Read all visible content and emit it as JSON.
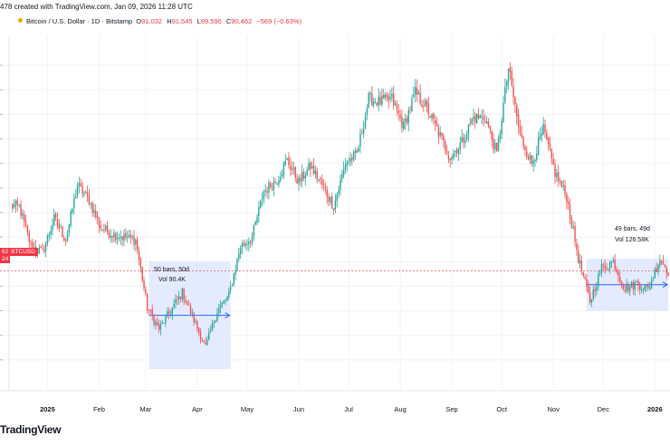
{
  "header": {
    "snapshot_line": "478 created with TradingView.com, Jan 09, 2026 11:28 UTC"
  },
  "legend": {
    "symbol": "Bitcoin / U.S. Dollar · 1D · Bitstamp",
    "open_key": "O",
    "open": "91,032",
    "high_key": "H",
    "high": "91,545",
    "low_key": "L",
    "low": "89,596",
    "close_key": "C",
    "close": "90,462",
    "change": "−569 (−0.63%)"
  },
  "price_label": {
    "left": "62",
    "name": "BTCUSD",
    "second": "24"
  },
  "measure_boxes": [
    {
      "bars_text": "50 bars, 50d",
      "vol_text": "Vol 90.4K"
    },
    {
      "bars_text": "49 bars, 49d",
      "vol_text": "Vol 126.58K"
    }
  ],
  "watermark": "TradingView",
  "colors": {
    "up": "#26a69a",
    "down": "#ef5350",
    "price_line": "#f23645",
    "measure_fill": "#dbe4ff",
    "measure_line": "#2962ff"
  },
  "chart_data": {
    "type": "candlestick",
    "symbol": "BTCUSD",
    "timeframe": "1D",
    "x_tick_labels": [
      "2025",
      "Feb",
      "Mar",
      "Apr",
      "May",
      "Jun",
      "Jul",
      "Aug",
      "Sep",
      "Oct",
      "Nov",
      "Dec",
      "2026"
    ],
    "x_tick_dates": [
      "2025-01-01",
      "2025-02-01",
      "2025-03-01",
      "2025-04-01",
      "2025-05-01",
      "2025-06-01",
      "2025-07-01",
      "2025-08-01",
      "2025-09-01",
      "2025-10-01",
      "2025-11-01",
      "2025-12-01",
      "2026-01-01"
    ],
    "x_range": [
      "2024-12-10",
      "2026-01-09"
    ],
    "y_range": [
      72000,
      128000
    ],
    "current_price": 90462,
    "grid": true,
    "weekly_closes": [
      [
        "2024-12-15",
        101000
      ],
      [
        "2024-12-22",
        94500
      ],
      [
        "2024-12-29",
        93500
      ],
      [
        "2025-01-05",
        99000
      ],
      [
        "2025-01-12",
        95500
      ],
      [
        "2025-01-19",
        104500
      ],
      [
        "2025-01-26",
        102000
      ],
      [
        "2025-02-02",
        97500
      ],
      [
        "2025-02-09",
        96500
      ],
      [
        "2025-02-16",
        96000
      ],
      [
        "2025-02-23",
        95500
      ],
      [
        "2025-03-02",
        84500
      ],
      [
        "2025-03-09",
        81000
      ],
      [
        "2025-03-16",
        84000
      ],
      [
        "2025-03-23",
        87000
      ],
      [
        "2025-03-30",
        82500
      ],
      [
        "2025-04-06",
        78000
      ],
      [
        "2025-04-13",
        84000
      ],
      [
        "2025-04-20",
        86500
      ],
      [
        "2025-04-27",
        94500
      ],
      [
        "2025-05-04",
        96000
      ],
      [
        "2025-05-11",
        103500
      ],
      [
        "2025-05-18",
        105000
      ],
      [
        "2025-05-25",
        108500
      ],
      [
        "2025-06-01",
        105000
      ],
      [
        "2025-06-08",
        107500
      ],
      [
        "2025-06-15",
        104500
      ],
      [
        "2025-06-22",
        101000
      ],
      [
        "2025-06-29",
        108000
      ],
      [
        "2025-07-06",
        109500
      ],
      [
        "2025-07-13",
        118500
      ],
      [
        "2025-07-20",
        118000
      ],
      [
        "2025-07-27",
        118500
      ],
      [
        "2025-08-03",
        114000
      ],
      [
        "2025-08-10",
        119500
      ],
      [
        "2025-08-17",
        117000
      ],
      [
        "2025-08-24",
        113000
      ],
      [
        "2025-08-31",
        109000
      ],
      [
        "2025-09-07",
        111500
      ],
      [
        "2025-09-14",
        115500
      ],
      [
        "2025-09-21",
        115500
      ],
      [
        "2025-09-28",
        109500
      ],
      [
        "2025-10-05",
        123500
      ],
      [
        "2025-10-12",
        112500
      ],
      [
        "2025-10-19",
        108000
      ],
      [
        "2025-10-26",
        113500
      ],
      [
        "2025-11-02",
        106500
      ],
      [
        "2025-11-09",
        102500
      ],
      [
        "2025-11-16",
        92500
      ],
      [
        "2025-11-23",
        85500
      ],
      [
        "2025-11-30",
        91000
      ],
      [
        "2025-12-07",
        92000
      ],
      [
        "2025-12-14",
        87500
      ],
      [
        "2025-12-21",
        88500
      ],
      [
        "2025-12-28",
        87500
      ],
      [
        "2026-01-04",
        92500
      ],
      [
        "2026-01-09",
        90462
      ]
    ],
    "measure_ranges": [
      {
        "from": "2025-03-03",
        "to": "2025-04-21",
        "low": 74500,
        "high": 92000,
        "bars": 50
      },
      {
        "from": "2025-11-21",
        "to": "2026-01-09",
        "low": 84000,
        "high": 92500,
        "bars": 49
      }
    ]
  }
}
